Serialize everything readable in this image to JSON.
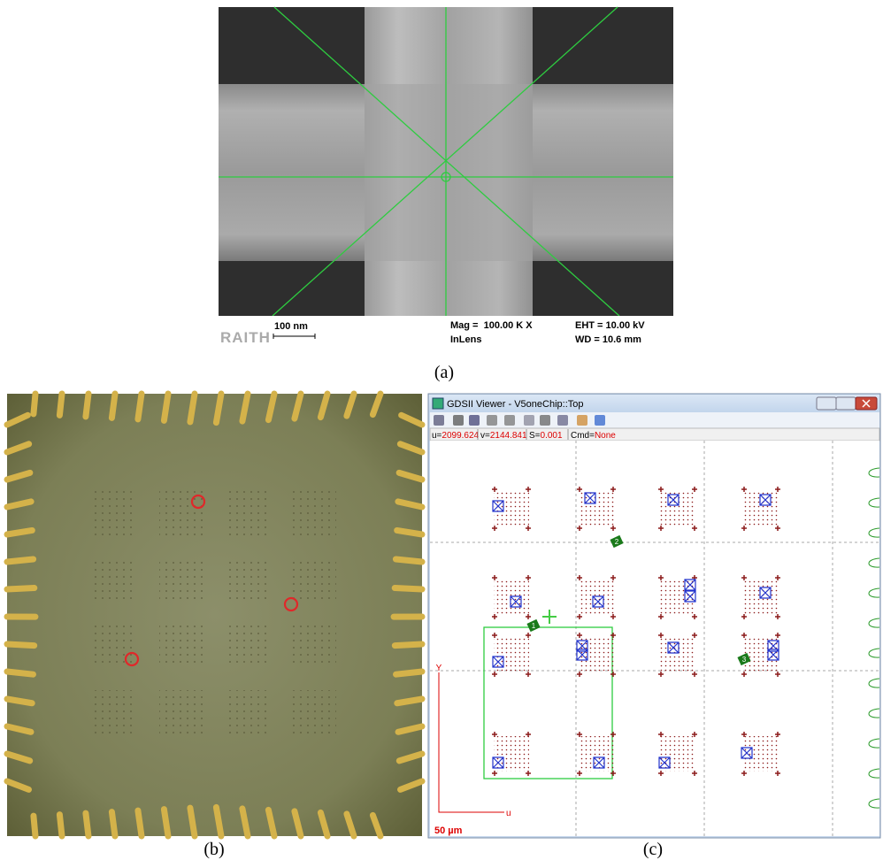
{
  "panel_a": {
    "scale_text": "100 nm",
    "logo": "RAITH",
    "mag": "Mag =  100.00 K X",
    "detector": "InLens",
    "eht": "EHT = 10.00 kV",
    "wd": "WD = 10.6 mm",
    "caption": "(a)"
  },
  "panel_b": {
    "caption": "(b)"
  },
  "panel_c": {
    "caption": "(c)",
    "window_title": "GDSII Viewer - V5oneChip::Top",
    "status": [
      {
        "label": "u=",
        "value": "2099.624"
      },
      {
        "label": "v=",
        "value": "2144.841"
      },
      {
        "label": "S=",
        "value": "0.001"
      },
      {
        "label": "Cmd=",
        "value": "None"
      }
    ],
    "markers": [
      "1",
      "2",
      "3"
    ],
    "axis_y": "Y",
    "axis_x": "u",
    "scale_text": "50 µm"
  }
}
